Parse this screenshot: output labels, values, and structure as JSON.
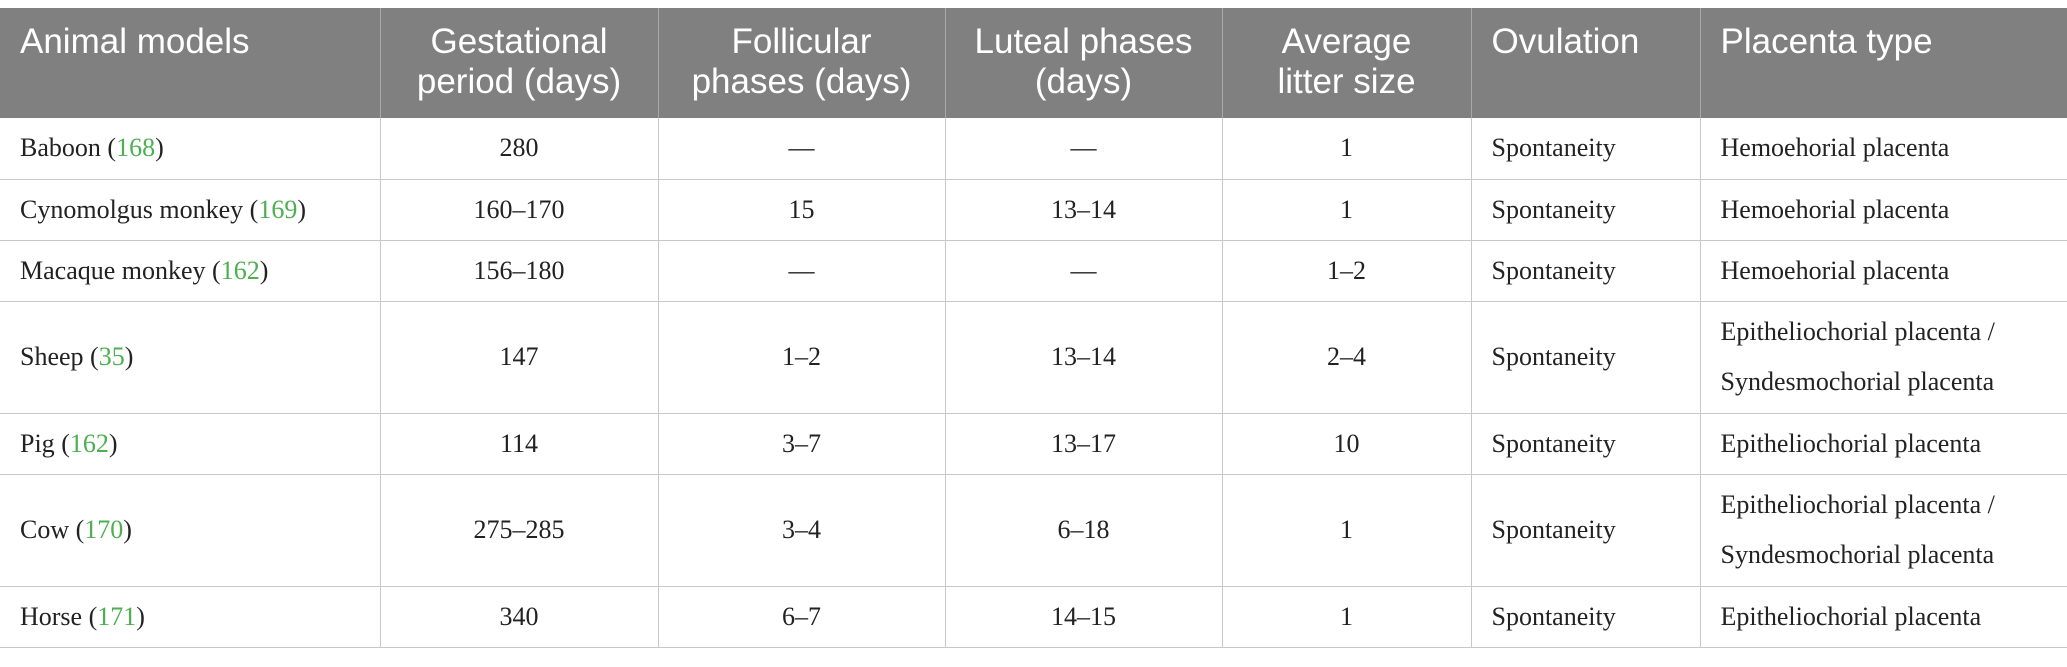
{
  "table": {
    "headers": [
      {
        "line1": "Animal models",
        "line2": ""
      },
      {
        "line1": "Gestational",
        "line2": "period (days)"
      },
      {
        "line1": "Follicular",
        "line2": "phases (days)"
      },
      {
        "line1": "Luteal phases",
        "line2": "(days)"
      },
      {
        "line1": "Average",
        "line2": "litter size"
      },
      {
        "line1": "Ovulation",
        "line2": ""
      },
      {
        "line1": "Placenta type",
        "line2": ""
      }
    ],
    "rows": [
      {
        "animal": "Baboon",
        "ref": "168",
        "gestation": "280",
        "follicular": "—",
        "luteal": "—",
        "litter": "1",
        "ovulation": "Spontaneity",
        "placenta_line1": "Hemoehorial placenta",
        "placenta_line2": ""
      },
      {
        "animal": "Cynomolgus monkey",
        "ref": "169",
        "gestation": "160–170",
        "follicular": "15",
        "luteal": "13–14",
        "litter": "1",
        "ovulation": "Spontaneity",
        "placenta_line1": "Hemoehorial placenta",
        "placenta_line2": ""
      },
      {
        "animal": "Macaque monkey",
        "ref": "162",
        "gestation": "156–180",
        "follicular": "—",
        "luteal": "—",
        "litter": "1–2",
        "ovulation": "Spontaneity",
        "placenta_line1": "Hemoehorial placenta",
        "placenta_line2": ""
      },
      {
        "animal": "Sheep",
        "ref": "35",
        "gestation": "147",
        "follicular": "1–2",
        "luteal": "13–14",
        "litter": "2–4",
        "ovulation": "Spontaneity",
        "placenta_line1": "Epitheliochorial placenta /",
        "placenta_line2": "Syndesmochorial placenta"
      },
      {
        "animal": "Pig",
        "ref": "162",
        "gestation": "114",
        "follicular": "3–7",
        "luteal": "13–17",
        "litter": "10",
        "ovulation": "Spontaneity",
        "placenta_line1": "Epitheliochorial placenta",
        "placenta_line2": ""
      },
      {
        "animal": "Cow",
        "ref": "170",
        "gestation": "275–285",
        "follicular": "3–4",
        "luteal": "6–18",
        "litter": "1",
        "ovulation": "Spontaneity",
        "placenta_line1": "Epitheliochorial placenta /",
        "placenta_line2": "Syndesmochorial placenta"
      },
      {
        "animal": "Horse",
        "ref": "171",
        "gestation": "340",
        "follicular": "6–7",
        "luteal": "14–15",
        "litter": "1",
        "ovulation": "Spontaneity",
        "placenta_line1": "Epitheliochorial placenta",
        "placenta_line2": ""
      }
    ]
  },
  "colors": {
    "header_bg": "#808080",
    "header_text": "#ffffff",
    "reference_link": "#4caf50",
    "grid_line": "#c8c8c8"
  }
}
